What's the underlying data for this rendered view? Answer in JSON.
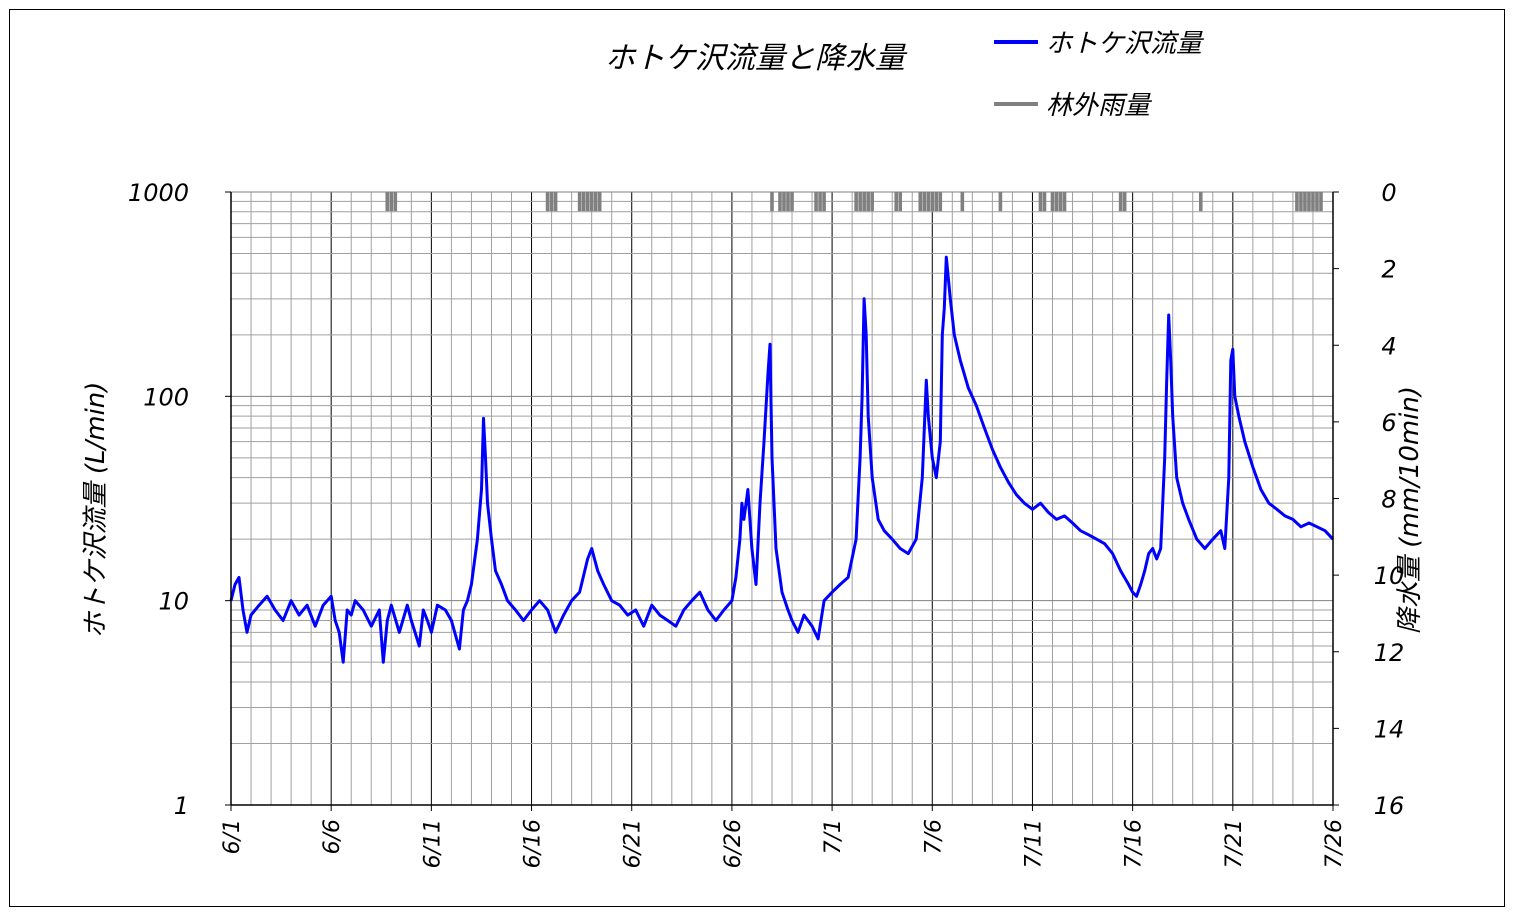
{
  "chart_data": {
    "type": "line",
    "title": "ホトケ沢流量と降水量",
    "legend": {
      "placement": "top-right",
      "entries": [
        {
          "label": "ホトケ沢流量",
          "color": "#0000ff"
        },
        {
          "label": "林外雨量",
          "color": "#808080"
        }
      ]
    },
    "y_left": {
      "label": "ホトケ沢流量 (L/min)",
      "scale": "log",
      "range": [
        1,
        1000
      ],
      "ticks": [
        "1",
        "10",
        "100",
        "1000"
      ]
    },
    "y_right": {
      "label": "降水量 (mm/10min)",
      "inverted": true,
      "range": [
        0,
        16
      ],
      "ticks": [
        "0",
        "2",
        "4",
        "6",
        "8",
        "10",
        "12",
        "14",
        "16"
      ]
    },
    "x": {
      "range_days": [
        0,
        55
      ],
      "ticks": [
        "6/1",
        "6/6",
        "6/11",
        "6/16",
        "6/21",
        "6/26",
        "7/1",
        "7/6",
        "7/11",
        "7/16",
        "7/21",
        "7/26"
      ]
    },
    "grid": true,
    "series": [
      {
        "name": "ホトケ沢流量",
        "color": "#0000ff",
        "points": [
          [
            0.0,
            10.0
          ],
          [
            0.2,
            12.0
          ],
          [
            0.4,
            13.0
          ],
          [
            0.6,
            9.0
          ],
          [
            0.8,
            7.0
          ],
          [
            1.0,
            8.5
          ],
          [
            1.4,
            9.5
          ],
          [
            1.8,
            10.5
          ],
          [
            2.2,
            9.0
          ],
          [
            2.6,
            8.0
          ],
          [
            3.0,
            10.0
          ],
          [
            3.4,
            8.5
          ],
          [
            3.8,
            9.5
          ],
          [
            4.2,
            7.5
          ],
          [
            4.6,
            9.5
          ],
          [
            5.0,
            10.5
          ],
          [
            5.2,
            8.0
          ],
          [
            5.4,
            7.0
          ],
          [
            5.6,
            5.0
          ],
          [
            5.8,
            9.0
          ],
          [
            6.0,
            8.5
          ],
          [
            6.2,
            10.0
          ],
          [
            6.6,
            9.0
          ],
          [
            7.0,
            7.5
          ],
          [
            7.4,
            9.0
          ],
          [
            7.6,
            5.0
          ],
          [
            7.8,
            8.0
          ],
          [
            8.0,
            9.5
          ],
          [
            8.4,
            7.0
          ],
          [
            8.8,
            9.5
          ],
          [
            9.0,
            8.0
          ],
          [
            9.4,
            6.0
          ],
          [
            9.6,
            9.0
          ],
          [
            9.8,
            8.0
          ],
          [
            10.0,
            7.0
          ],
          [
            10.3,
            9.5
          ],
          [
            10.7,
            9.0
          ],
          [
            11.0,
            8.0
          ],
          [
            11.4,
            5.8
          ],
          [
            11.6,
            9.0
          ],
          [
            11.8,
            10.0
          ],
          [
            12.0,
            12.0
          ],
          [
            12.3,
            20.0
          ],
          [
            12.5,
            35.0
          ],
          [
            12.6,
            78.0
          ],
          [
            12.7,
            50.0
          ],
          [
            12.8,
            30.0
          ],
          [
            13.0,
            20.0
          ],
          [
            13.2,
            14.0
          ],
          [
            13.5,
            12.0
          ],
          [
            13.8,
            10.0
          ],
          [
            14.2,
            9.0
          ],
          [
            14.6,
            8.0
          ],
          [
            15.0,
            9.0
          ],
          [
            15.4,
            10.0
          ],
          [
            15.8,
            9.0
          ],
          [
            16.2,
            7.0
          ],
          [
            16.6,
            8.5
          ],
          [
            17.0,
            10.0
          ],
          [
            17.4,
            11.0
          ],
          [
            17.8,
            16.0
          ],
          [
            18.0,
            18.0
          ],
          [
            18.3,
            14.0
          ],
          [
            18.6,
            12.0
          ],
          [
            19.0,
            10.0
          ],
          [
            19.4,
            9.5
          ],
          [
            19.8,
            8.5
          ],
          [
            20.2,
            9.0
          ],
          [
            20.6,
            7.5
          ],
          [
            21.0,
            9.5
          ],
          [
            21.4,
            8.5
          ],
          [
            21.8,
            8.0
          ],
          [
            22.2,
            7.5
          ],
          [
            22.6,
            9.0
          ],
          [
            23.0,
            10.0
          ],
          [
            23.4,
            11.0
          ],
          [
            23.8,
            9.0
          ],
          [
            24.2,
            8.0
          ],
          [
            24.6,
            9.0
          ],
          [
            25.0,
            10.0
          ],
          [
            25.2,
            13.0
          ],
          [
            25.4,
            20.0
          ],
          [
            25.5,
            30.0
          ],
          [
            25.6,
            25.0
          ],
          [
            25.8,
            35.0
          ],
          [
            26.0,
            18.0
          ],
          [
            26.2,
            12.0
          ],
          [
            26.4,
            30.0
          ],
          [
            26.6,
            60.0
          ],
          [
            26.8,
            130.0
          ],
          [
            26.9,
            180.0
          ],
          [
            27.0,
            50.0
          ],
          [
            27.2,
            18.0
          ],
          [
            27.5,
            11.0
          ],
          [
            27.8,
            9.0
          ],
          [
            28.0,
            8.0
          ],
          [
            28.3,
            7.0
          ],
          [
            28.6,
            8.5
          ],
          [
            29.0,
            7.5
          ],
          [
            29.3,
            6.5
          ],
          [
            29.6,
            10.0
          ],
          [
            30.0,
            11.0
          ],
          [
            30.4,
            12.0
          ],
          [
            30.8,
            13.0
          ],
          [
            31.2,
            20.0
          ],
          [
            31.4,
            50.0
          ],
          [
            31.5,
            100.0
          ],
          [
            31.6,
            300.0
          ],
          [
            31.7,
            200.0
          ],
          [
            31.8,
            80.0
          ],
          [
            32.0,
            40.0
          ],
          [
            32.3,
            25.0
          ],
          [
            32.6,
            22.0
          ],
          [
            33.0,
            20.0
          ],
          [
            33.4,
            18.0
          ],
          [
            33.8,
            17.0
          ],
          [
            34.2,
            20.0
          ],
          [
            34.5,
            40.0
          ],
          [
            34.7,
            120.0
          ],
          [
            34.8,
            80.0
          ],
          [
            35.0,
            50.0
          ],
          [
            35.2,
            40.0
          ],
          [
            35.4,
            60.0
          ],
          [
            35.5,
            200.0
          ],
          [
            35.6,
            270.0
          ],
          [
            35.7,
            480.0
          ],
          [
            35.9,
            300.0
          ],
          [
            36.1,
            200.0
          ],
          [
            36.4,
            150.0
          ],
          [
            36.8,
            110.0
          ],
          [
            37.2,
            90.0
          ],
          [
            37.6,
            70.0
          ],
          [
            38.0,
            55.0
          ],
          [
            38.4,
            45.0
          ],
          [
            38.8,
            38.0
          ],
          [
            39.2,
            33.0
          ],
          [
            39.6,
            30.0
          ],
          [
            40.0,
            28.0
          ],
          [
            40.4,
            30.0
          ],
          [
            40.8,
            27.0
          ],
          [
            41.2,
            25.0
          ],
          [
            41.6,
            26.0
          ],
          [
            42.0,
            24.0
          ],
          [
            42.4,
            22.0
          ],
          [
            42.8,
            21.0
          ],
          [
            43.2,
            20.0
          ],
          [
            43.6,
            19.0
          ],
          [
            44.0,
            17.0
          ],
          [
            44.4,
            14.0
          ],
          [
            44.8,
            12.0
          ],
          [
            45.0,
            11.0
          ],
          [
            45.2,
            10.5
          ],
          [
            45.4,
            12.0
          ],
          [
            45.6,
            14.0
          ],
          [
            45.8,
            17.0
          ],
          [
            46.0,
            18.0
          ],
          [
            46.2,
            16.0
          ],
          [
            46.4,
            18.0
          ],
          [
            46.6,
            50.0
          ],
          [
            46.7,
            120.0
          ],
          [
            46.8,
            250.0
          ],
          [
            46.9,
            150.0
          ],
          [
            47.0,
            80.0
          ],
          [
            47.2,
            40.0
          ],
          [
            47.5,
            30.0
          ],
          [
            47.8,
            25.0
          ],
          [
            48.2,
            20.0
          ],
          [
            48.6,
            18.0
          ],
          [
            49.0,
            20.0
          ],
          [
            49.4,
            22.0
          ],
          [
            49.6,
            18.0
          ],
          [
            49.8,
            40.0
          ],
          [
            49.9,
            150.0
          ],
          [
            50.0,
            170.0
          ],
          [
            50.1,
            100.0
          ],
          [
            50.3,
            80.0
          ],
          [
            50.6,
            60.0
          ],
          [
            51.0,
            45.0
          ],
          [
            51.4,
            35.0
          ],
          [
            51.8,
            30.0
          ],
          [
            52.2,
            28.0
          ],
          [
            52.6,
            26.0
          ],
          [
            53.0,
            25.0
          ],
          [
            53.4,
            23.0
          ],
          [
            53.8,
            24.0
          ],
          [
            54.2,
            23.0
          ],
          [
            54.6,
            22.0
          ],
          [
            55.0,
            20.0
          ]
        ]
      },
      {
        "name": "林外雨量",
        "color": "#808080",
        "inverted_bars": [
          [
            7.8,
            0.5
          ],
          [
            8.0,
            0.5
          ],
          [
            8.2,
            0.5
          ],
          [
            15.8,
            0.5
          ],
          [
            16.0,
            0.5
          ],
          [
            16.2,
            0.5
          ],
          [
            17.4,
            0.5
          ],
          [
            17.6,
            0.5
          ],
          [
            17.8,
            0.5
          ],
          [
            18.0,
            0.5
          ],
          [
            18.2,
            0.5
          ],
          [
            18.4,
            0.5
          ],
          [
            27.0,
            0.5
          ],
          [
            27.4,
            0.5
          ],
          [
            27.6,
            0.5
          ],
          [
            27.8,
            0.5
          ],
          [
            28.0,
            0.5
          ],
          [
            29.2,
            0.5
          ],
          [
            29.4,
            0.5
          ],
          [
            29.6,
            0.5
          ],
          [
            31.2,
            0.5
          ],
          [
            31.4,
            0.5
          ],
          [
            31.6,
            0.5
          ],
          [
            31.8,
            0.5
          ],
          [
            32.0,
            0.5
          ],
          [
            33.2,
            0.5
          ],
          [
            33.4,
            0.5
          ],
          [
            34.4,
            0.5
          ],
          [
            34.6,
            0.5
          ],
          [
            34.8,
            0.5
          ],
          [
            35.0,
            0.5
          ],
          [
            35.2,
            0.5
          ],
          [
            35.4,
            0.5
          ],
          [
            36.5,
            0.5
          ],
          [
            38.4,
            0.5
          ],
          [
            40.4,
            0.5
          ],
          [
            40.6,
            0.5
          ],
          [
            41.0,
            0.5
          ],
          [
            41.2,
            0.5
          ],
          [
            41.4,
            0.5
          ],
          [
            41.6,
            0.5
          ],
          [
            44.4,
            0.5
          ],
          [
            44.6,
            0.5
          ],
          [
            48.4,
            0.5
          ],
          [
            53.2,
            0.5
          ],
          [
            53.4,
            0.5
          ],
          [
            53.6,
            0.5
          ],
          [
            53.8,
            0.5
          ],
          [
            54.0,
            0.5
          ],
          [
            54.2,
            0.5
          ],
          [
            54.4,
            0.5
          ]
        ]
      }
    ]
  }
}
